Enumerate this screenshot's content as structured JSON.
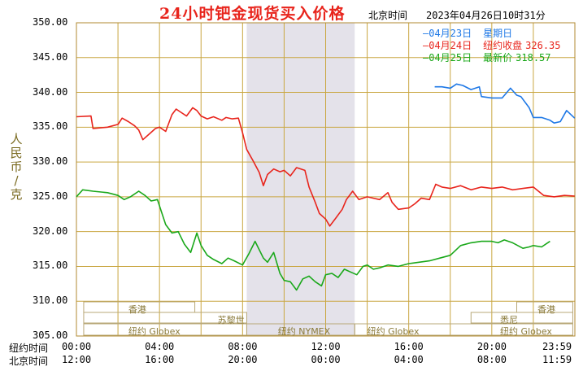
{
  "header": {
    "title": "24小时钯金现货买入价格",
    "timezone_label": "北京时间",
    "timestamp": "2023年04月26日10时31分"
  },
  "legend": [
    {
      "date": "04月23日",
      "label": "星期日",
      "value": "",
      "color": "#1e78e6"
    },
    {
      "date": "04月24日",
      "label": "纽约收盘",
      "value": "326.35",
      "color": "#e8241c"
    },
    {
      "date": "04月25日",
      "label": "最新价",
      "value": "318.57",
      "color": "#1aa81a"
    }
  ],
  "y_axis_label": [
    "人",
    "民",
    "币",
    "/",
    "克"
  ],
  "x_rows": [
    {
      "label": "纽约时间",
      "ticks": [
        "00:00",
        "04:00",
        "08:00",
        "12:00",
        "16:00",
        "20:00",
        "23:59"
      ]
    },
    {
      "label": "北京时间",
      "ticks": [
        "12:00",
        "16:00",
        "20:00",
        "00:00",
        "04:00",
        "08:00",
        "11:59"
      ]
    }
  ],
  "sessions": {
    "hk": "香港",
    "paris": "苏黎世",
    "ny_globex_left": "纽约 Globex",
    "ny_nymex": "纽约 NYMEX",
    "ny_globex_mid": "纽约 Globex",
    "sydney": "悉尼",
    "hk_right": "香港",
    "ny_globex_right": "纽约 Globex"
  },
  "chart_data": {
    "type": "line",
    "title": "24小时钯金现货买入价格",
    "ylabel": "人民币/克",
    "xlabel": "纽约时间 / 北京时间",
    "ylim": [
      305,
      350
    ],
    "xlim": [
      0,
      24
    ],
    "y_ticks": [
      "305.00",
      "310.00",
      "315.00",
      "320.00",
      "325.00",
      "330.00",
      "335.00",
      "340.00",
      "345.00",
      "350.00"
    ],
    "grid": true,
    "legend_position": "top-right",
    "series": [
      {
        "name": "04月23日",
        "color": "#1e78e6",
        "x": [
          17.25,
          17.6,
          18.0,
          18.3,
          18.6,
          19.0,
          19.4,
          19.5,
          20.0,
          20.5,
          20.9,
          21.2,
          21.4,
          21.8,
          22.0,
          22.4,
          22.8,
          23.0,
          23.3,
          23.6,
          23.99
        ],
        "y": [
          340.8,
          340.8,
          340.6,
          341.2,
          341.0,
          340.4,
          340.8,
          339.4,
          339.2,
          339.2,
          340.6,
          339.6,
          339.4,
          337.8,
          336.4,
          336.4,
          336.0,
          335.6,
          335.8,
          337.4,
          336.3
        ]
      },
      {
        "name": "04月24日",
        "color": "#e8241c",
        "x": [
          0,
          0.7,
          0.8,
          1.5,
          2.0,
          2.2,
          2.5,
          2.8,
          3.0,
          3.2,
          3.5,
          3.8,
          4.0,
          4.3,
          4.6,
          4.8,
          5.0,
          5.3,
          5.6,
          5.8,
          6.0,
          6.3,
          6.6,
          7.0,
          7.2,
          7.5,
          7.8,
          8.0,
          8.2,
          8.5,
          8.8,
          9.0,
          9.2,
          9.5,
          9.8,
          10.0,
          10.3,
          10.6,
          11.0,
          11.2,
          11.5,
          11.7,
          12.0,
          12.2,
          12.5,
          12.8,
          13.0,
          13.3,
          13.6,
          14.0,
          14.3,
          14.6,
          15.0,
          15.2,
          15.5,
          16.0,
          16.3,
          16.6,
          17.0,
          17.3,
          17.6,
          18.0,
          18.5,
          19.0,
          19.5,
          20.0,
          20.5,
          21.0,
          21.5,
          22.0,
          22.5,
          23.0,
          23.5,
          23.99
        ],
        "y": [
          336.5,
          336.6,
          334.8,
          335.0,
          335.4,
          336.3,
          335.8,
          335.2,
          334.6,
          333.2,
          334.0,
          334.8,
          335.0,
          334.4,
          336.8,
          337.6,
          337.2,
          336.6,
          337.8,
          337.4,
          336.6,
          336.2,
          336.5,
          336.0,
          336.4,
          336.2,
          336.3,
          334.2,
          331.8,
          330.2,
          328.5,
          326.6,
          328.2,
          329.0,
          328.6,
          328.8,
          328.0,
          329.2,
          328.8,
          326.4,
          324.2,
          322.6,
          321.8,
          320.8,
          322.0,
          323.2,
          324.6,
          325.8,
          324.6,
          325.0,
          324.8,
          324.6,
          325.6,
          324.2,
          323.2,
          323.4,
          324.0,
          324.8,
          324.6,
          326.8,
          326.4,
          326.2,
          326.6,
          326.0,
          326.4,
          326.2,
          326.4,
          326.0,
          326.2,
          326.4,
          325.2,
          325.0,
          325.2,
          325.1
        ]
      },
      {
        "name": "04月25日",
        "color": "#1aa81a",
        "x": [
          0,
          0.3,
          0.8,
          1.5,
          2.0,
          2.3,
          2.6,
          3.0,
          3.3,
          3.6,
          3.9,
          4.1,
          4.3,
          4.6,
          4.9,
          5.2,
          5.5,
          5.8,
          6.0,
          6.3,
          6.6,
          7.0,
          7.3,
          7.6,
          8.0,
          8.3,
          8.6,
          9.0,
          9.2,
          9.5,
          9.8,
          10.0,
          10.3,
          10.6,
          10.9,
          11.2,
          11.5,
          11.8,
          12.0,
          12.3,
          12.6,
          12.9,
          13.2,
          13.5,
          13.8,
          14.0,
          14.3,
          14.6,
          15.0,
          15.5,
          16.0,
          16.5,
          17.0,
          17.5,
          18.0,
          18.5,
          19.0,
          19.5,
          20.0,
          20.3,
          20.6,
          21.0,
          21.5,
          21.8,
          22.0,
          22.4,
          22.8
        ],
        "y": [
          325.0,
          326.0,
          325.8,
          325.6,
          325.2,
          324.6,
          325.0,
          325.8,
          325.2,
          324.4,
          324.6,
          322.8,
          321.0,
          319.8,
          320.0,
          318.2,
          317.0,
          319.8,
          318.0,
          316.6,
          316.0,
          315.4,
          316.2,
          315.8,
          315.2,
          316.8,
          318.6,
          316.2,
          315.6,
          317.0,
          314.0,
          313.0,
          312.8,
          311.6,
          313.2,
          313.6,
          312.8,
          312.2,
          313.8,
          314.0,
          313.4,
          314.6,
          314.2,
          313.8,
          315.0,
          315.2,
          314.6,
          314.8,
          315.2,
          315.0,
          315.4,
          315.6,
          315.8,
          316.2,
          316.6,
          318.0,
          318.4,
          318.6,
          318.6,
          318.4,
          318.8,
          318.4,
          317.6,
          317.8,
          318.0,
          317.8,
          318.6
        ]
      }
    ]
  }
}
